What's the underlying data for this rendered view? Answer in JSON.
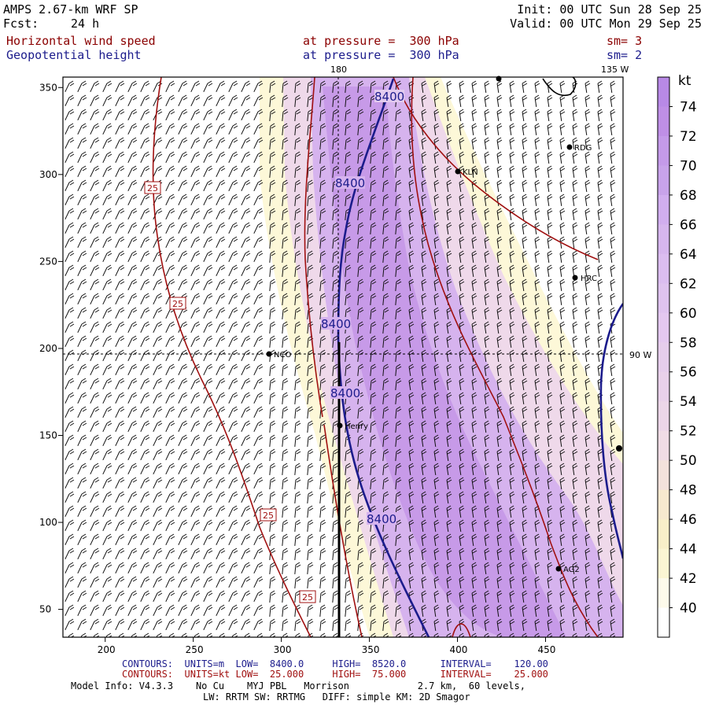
{
  "header": {
    "model": "AMPS 2.67-km WRF SP",
    "fcst_label": "Fcst:",
    "fcst_value": "24 h",
    "init": "Init: 00 UTC Sun 28 Sep 25",
    "valid": "Valid: 00 UTC Mon 29 Sep 25",
    "field1": "Horizontal wind speed",
    "field1_level": "at pressure =  300 hPa",
    "field1_smooth": "sm= 3",
    "field2": "Geopotential height",
    "field2_level": "at pressure =  300 hPa",
    "field2_smooth": "sm= 2"
  },
  "map": {
    "meridian_top": "180",
    "meridian_right": "135 W",
    "meridian_90w": "90 W",
    "x_ticks": [
      "200",
      "250",
      "300",
      "350",
      "400",
      "450"
    ],
    "y_ticks": [
      "350",
      "300",
      "250",
      "200",
      "150",
      "100",
      "50"
    ],
    "stations": [
      {
        "label": "RDG"
      },
      {
        "label": "KLN"
      },
      {
        "label": "HRC"
      },
      {
        "label": "NCO"
      },
      {
        "label": "Henry"
      },
      {
        "label": "AG2"
      }
    ],
    "height_labels": [
      "8400",
      "8400",
      "8400",
      "8400",
      "8400"
    ],
    "speed_labels": [
      "25",
      "25",
      "25",
      "25"
    ],
    "colors": {
      "height_contour": "#1c1c8c",
      "speed_contour": "#a01010",
      "shade_light": "#fdf8d8",
      "shade_mid": "#e9c9e4",
      "shade_high": "#c89ae6"
    }
  },
  "colorbar": {
    "unit": "kt",
    "ticks": [
      "74",
      "72",
      "70",
      "68",
      "66",
      "64",
      "62",
      "60",
      "58",
      "56",
      "54",
      "52",
      "50",
      "48",
      "46",
      "44",
      "42",
      "40"
    ],
    "colors": [
      "#b889e6",
      "#bf8fe6",
      "#c49ae9",
      "#c8a3ea",
      "#d1aeef",
      "#d6b6ee",
      "#dbbdf0",
      "#dfc3ef",
      "#e4c8f0",
      "#e6cdec",
      "#e9d1ea",
      "#ecd6e8",
      "#f0dce5",
      "#f3e2dc",
      "#f7e9cf",
      "#f8efc9",
      "#fbf5d3",
      "#fdfaeb",
      "#ffffff"
    ]
  },
  "footer": {
    "c1_label": "CONTOURS:",
    "c1_units": "UNITS=m",
    "c1_low": "LOW=  8400.0",
    "c1_high": "HIGH=  8520.0",
    "c1_interval": "INTERVAL=    120.00",
    "c2_label": "CONTOURS:",
    "c2_units": "UNITS=kt",
    "c2_low": "LOW=  25.000",
    "c2_high": "HIGH=  75.000",
    "c2_interval": "INTERVAL=    25.000",
    "model_info": "Model Info: V4.3.3    No Cu    MYJ PBL   Morrison            2.7 km,  60 levels,",
    "physics": "LW: RRTM SW: RRTMG   DIFF: simple KM: 2D Smagor"
  }
}
